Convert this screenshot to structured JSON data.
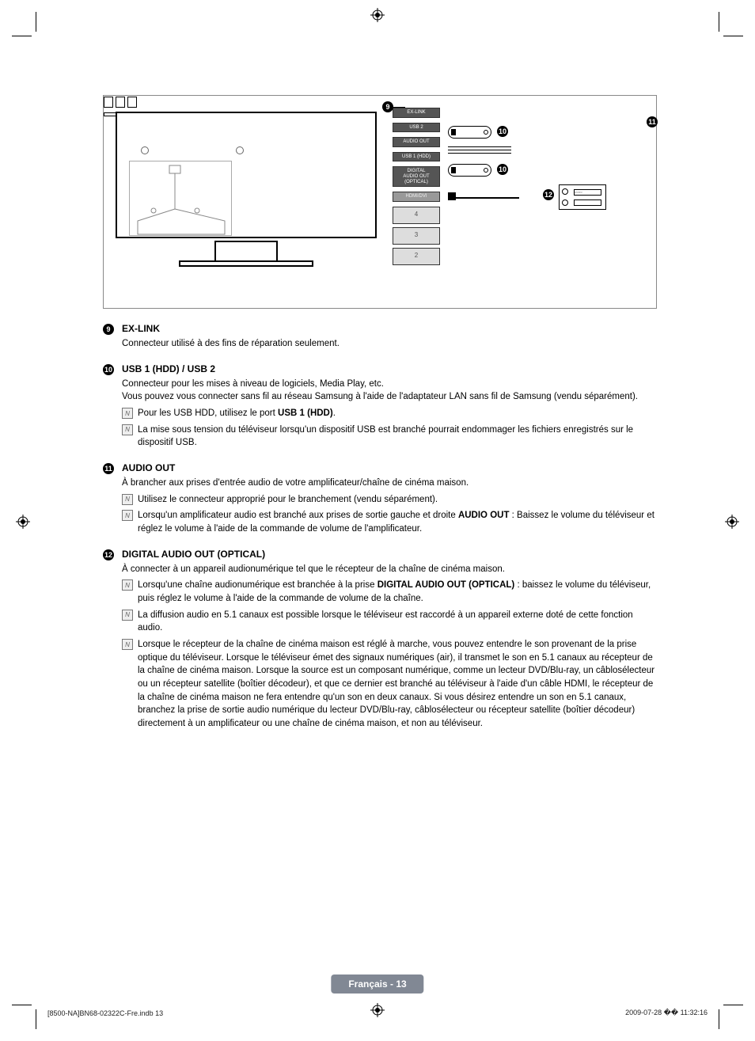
{
  "diagram": {
    "ports": {
      "exlink": "EX-LINK",
      "usb2": "USB 2",
      "audio_out": "AUDIO OUT",
      "usb1": "USB 1 (HDD)",
      "digital": "DIGITAL\nAUDIO OUT\n(OPTICAL)",
      "hdmi": "HDMI/DVI",
      "n4": "4",
      "n3": "3",
      "n2": "2"
    },
    "callouts": {
      "c9": "9",
      "c10": "10",
      "c11": "11",
      "c12": "12"
    }
  },
  "sections": [
    {
      "num": "9",
      "title": "EX-LINK",
      "desc": "Connecteur utilisé à des fins de réparation seulement.",
      "notes": []
    },
    {
      "num": "10",
      "title": "USB 1 (HDD) / USB 2",
      "desc": "Connecteur pour les mises à niveau de logiciels, Media Play, etc.\nVous pouvez vous connecter sans fil au réseau Samsung à l'aide de l'adaptateur LAN sans fil de Samsung (vendu séparément).",
      "notes": [
        {
          "pre": "Pour les USB HDD, utilisez le port ",
          "bold": "USB 1 (HDD)",
          "post": "."
        },
        {
          "text": "La mise sous tension du téléviseur lorsqu'un dispositif USB est branché pourrait endommager les fichiers enregistrés sur le dispositif USB."
        }
      ]
    },
    {
      "num": "11",
      "title": "AUDIO OUT",
      "desc": "À brancher aux prises d'entrée audio de votre amplificateur/chaîne de cinéma maison.",
      "notes": [
        {
          "text": "Utilisez le connecteur approprié pour le branchement (vendu séparément)."
        },
        {
          "pre": "Lorsqu'un amplificateur audio est branché aux prises de sortie gauche et droite ",
          "bold": "AUDIO OUT",
          "post": " : Baissez le volume du téléviseur et réglez le volume à l'aide de la commande de volume de l'amplificateur."
        }
      ]
    },
    {
      "num": "12",
      "title": "DIGITAL AUDIO OUT (OPTICAL)",
      "desc": "À connecter à un appareil audionumérique tel que le récepteur de la chaîne de cinéma maison.",
      "notes": [
        {
          "pre": "Lorsqu'une chaîne audionumérique est branchée à la prise ",
          "bold": "DIGITAL AUDIO OUT (OPTICAL)",
          "post": " : baissez le volume du téléviseur, puis réglez le volume à l'aide de la commande de volume de la chaîne."
        },
        {
          "text": "La diffusion audio en 5.1 canaux est possible lorsque le téléviseur est raccordé à un appareil externe doté de cette fonction audio."
        },
        {
          "text": "Lorsque le récepteur de la chaîne de cinéma maison est réglé à marche, vous pouvez entendre le son provenant de la prise optique du téléviseur. Lorsque le téléviseur émet des signaux numériques (air), il transmet le son en 5.1 canaux au récepteur de la chaîne de cinéma maison. Lorsque la source est un composant numérique, comme un lecteur DVD/Blu-ray, un câblosélecteur ou un récepteur satellite (boîtier décodeur), et que ce dernier est branché au téléviseur à l'aide d'un câble HDMI, le récepteur de la chaîne de cinéma maison ne fera entendre qu'un son en deux canaux. Si vous désirez entendre un son en 5.1 canaux, branchez la prise de sortie audio numérique du lecteur DVD/Blu-ray, câblosélecteur ou récepteur satellite (boîtier décodeur) directement à un amplificateur ou une chaîne de cinéma maison, et non au téléviseur."
        }
      ]
    }
  ],
  "footer": {
    "badge": "Français - 13",
    "left": "[8500-NA]BN68-02322C-Fre.indb   13",
    "right": "2009-07-28   �� 11:32:16"
  }
}
